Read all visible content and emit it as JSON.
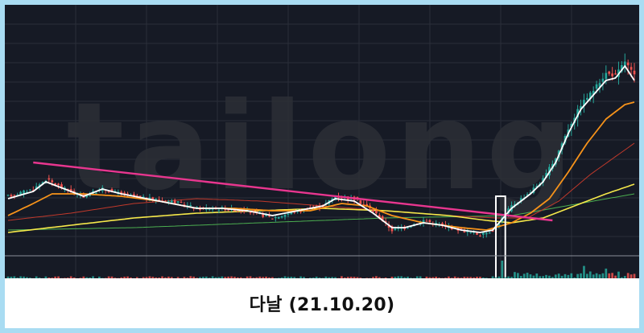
{
  "caption": "다날 (21.10.20)",
  "watermark": "tailong",
  "colors": {
    "frame": "#a9dcf2",
    "background": "#161a25",
    "grid": "#2a2e39",
    "up": "#26a69a",
    "down": "#ef5350",
    "short_ma": "#ffffff",
    "mid_ma": "#f7931a",
    "long_ma": "#f5e84a",
    "longer_ma": "#c0392b",
    "longest_ma": "#4caf50",
    "trendline": "#e8368f",
    "highlight": "#ffffff"
  },
  "chart_data": {
    "type": "candlestick",
    "x_count": 200,
    "y_range": [
      0,
      100
    ],
    "y_unit": "relative price level (no axis labels shown)",
    "series": [
      {
        "role": "price",
        "anchors": [
          [
            0,
            24
          ],
          [
            8,
            27
          ],
          [
            12,
            31
          ],
          [
            18,
            27
          ],
          [
            24,
            24
          ],
          [
            30,
            27
          ],
          [
            36,
            25
          ],
          [
            44,
            23
          ],
          [
            52,
            22
          ],
          [
            60,
            19
          ],
          [
            68,
            19
          ],
          [
            76,
            18
          ],
          [
            84,
            15
          ],
          [
            92,
            18
          ],
          [
            100,
            20
          ],
          [
            104,
            24
          ],
          [
            110,
            23
          ],
          [
            116,
            18
          ],
          [
            122,
            10
          ],
          [
            126,
            11
          ],
          [
            132,
            14
          ],
          [
            138,
            12
          ],
          [
            144,
            10
          ],
          [
            150,
            8
          ],
          [
            154,
            10
          ],
          [
            160,
            20
          ],
          [
            166,
            26
          ],
          [
            170,
            31
          ],
          [
            174,
            40
          ],
          [
            178,
            52
          ],
          [
            182,
            62
          ],
          [
            186,
            68
          ],
          [
            190,
            75
          ],
          [
            193,
            74
          ],
          [
            196,
            80
          ],
          [
            198,
            76
          ],
          [
            199,
            74
          ]
        ]
      },
      {
        "role": "short_ma",
        "anchors": [
          [
            0,
            23
          ],
          [
            8,
            26
          ],
          [
            12,
            30
          ],
          [
            18,
            27
          ],
          [
            24,
            24
          ],
          [
            30,
            27
          ],
          [
            36,
            25
          ],
          [
            44,
            23
          ],
          [
            52,
            21
          ],
          [
            60,
            19
          ],
          [
            68,
            19
          ],
          [
            76,
            18
          ],
          [
            84,
            16
          ],
          [
            92,
            18
          ],
          [
            100,
            20
          ],
          [
            104,
            23
          ],
          [
            110,
            22
          ],
          [
            116,
            17
          ],
          [
            122,
            11
          ],
          [
            126,
            11
          ],
          [
            132,
            13
          ],
          [
            138,
            12
          ],
          [
            144,
            10
          ],
          [
            150,
            9
          ],
          [
            154,
            10
          ],
          [
            160,
            19
          ],
          [
            166,
            25
          ],
          [
            170,
            30
          ],
          [
            174,
            38
          ],
          [
            178,
            50
          ],
          [
            182,
            60
          ],
          [
            186,
            66
          ],
          [
            190,
            72
          ],
          [
            193,
            73
          ],
          [
            196,
            78
          ],
          [
            199,
            72
          ]
        ]
      },
      {
        "role": "mid_ma",
        "anchors": [
          [
            0,
            16
          ],
          [
            8,
            21
          ],
          [
            14,
            25
          ],
          [
            24,
            25
          ],
          [
            36,
            24
          ],
          [
            48,
            22
          ],
          [
            60,
            19
          ],
          [
            72,
            19
          ],
          [
            84,
            18
          ],
          [
            96,
            18
          ],
          [
            106,
            21
          ],
          [
            114,
            20
          ],
          [
            122,
            16
          ],
          [
            132,
            13
          ],
          [
            144,
            11
          ],
          [
            152,
            10
          ],
          [
            160,
            13
          ],
          [
            166,
            17
          ],
          [
            172,
            23
          ],
          [
            178,
            34
          ],
          [
            184,
            46
          ],
          [
            190,
            56
          ],
          [
            196,
            62
          ],
          [
            199,
            63
          ]
        ]
      },
      {
        "role": "long_ma",
        "anchors": [
          [
            0,
            9
          ],
          [
            20,
            12
          ],
          [
            40,
            15
          ],
          [
            60,
            17
          ],
          [
            80,
            18
          ],
          [
            100,
            19
          ],
          [
            120,
            18
          ],
          [
            140,
            16
          ],
          [
            152,
            14
          ],
          [
            160,
            13
          ],
          [
            170,
            15
          ],
          [
            180,
            20
          ],
          [
            190,
            25
          ],
          [
            199,
            29
          ]
        ]
      },
      {
        "role": "longer_ma",
        "anchors": [
          [
            0,
            14
          ],
          [
            20,
            17
          ],
          [
            40,
            21
          ],
          [
            60,
            23
          ],
          [
            80,
            22
          ],
          [
            100,
            20
          ],
          [
            120,
            18
          ],
          [
            140,
            16
          ],
          [
            155,
            15
          ],
          [
            165,
            15
          ],
          [
            175,
            22
          ],
          [
            185,
            33
          ],
          [
            199,
            46
          ]
        ]
      },
      {
        "role": "longest_ma",
        "anchors": [
          [
            0,
            10
          ],
          [
            40,
            11
          ],
          [
            80,
            13
          ],
          [
            120,
            15
          ],
          [
            160,
            16
          ],
          [
            199,
            25
          ]
        ]
      }
    ],
    "trendline": {
      "from": [
        8,
        38
      ],
      "to": [
        173,
        14
      ]
    },
    "highlight": {
      "x_from": 155,
      "x_to": 158
    },
    "volume_spikes": [
      {
        "x": 157,
        "value": 100
      },
      {
        "x": 183,
        "value": 70
      },
      {
        "x": 190,
        "value": 55
      }
    ],
    "grid": true,
    "legend": "none",
    "axis_labels": "none"
  }
}
